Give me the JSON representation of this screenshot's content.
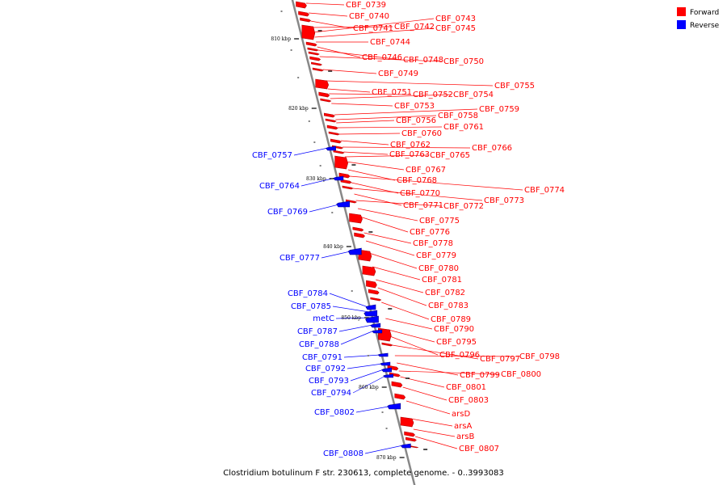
{
  "caption": "Clostridium botulinum F str. 230613, complete genome. - 0..3993083",
  "legend": [
    {
      "label": "Forward",
      "color": "#ff0000"
    },
    {
      "label": "Reverse",
      "color": "#0000ff"
    }
  ],
  "ticks": [
    "810 kbp",
    "820 kbp",
    "830 kbp",
    "840 kbp",
    "850 kbp",
    "860 kbp",
    "870 kbp"
  ],
  "colors": {
    "forward": "#ff0000",
    "reverse": "#0000ff",
    "backbone": "#888888"
  },
  "forward_labels": [
    "CBF_0739",
    "CBF_0740",
    "CBF_0741",
    "CBF_0742",
    "CBF_0743",
    "CBF_0745",
    "CBF_0744",
    "CBF_0746",
    "CBF_0748",
    "CBF_0750",
    "CBF_0749",
    "CBF_0755",
    "CBF_0751",
    "CBF_0752",
    "CBF_0754",
    "CBF_0753",
    "CBF_0759",
    "CBF_0758",
    "CBF_0756",
    "CBF_0761",
    "CBF_0760",
    "CBF_0762",
    "CBF_0766",
    "CBF_0763",
    "CBF_0765",
    "CBF_0767",
    "CBF_0768",
    "CBF_0774",
    "CBF_0770",
    "CBF_0773",
    "CBF_0771",
    "CBF_0772",
    "CBF_0775",
    "CBF_0776",
    "CBF_0778",
    "CBF_0779",
    "CBF_0780",
    "CBF_0781",
    "CBF_0782",
    "CBF_0783",
    "CBF_0789",
    "CBF_0790",
    "CBF_0795",
    "CBF_0796",
    "CBF_0797",
    "CBF_0798",
    "CBF_0799",
    "CBF_0800",
    "CBF_0801",
    "CBF_0803",
    "arsD",
    "arsA",
    "arsB",
    "CBF_0807"
  ],
  "reverse_labels": [
    "CBF_0757",
    "CBF_0764",
    "CBF_0769",
    "CBF_0777",
    "CBF_0784",
    "CBF_0785",
    "metC",
    "CBF_0787",
    "CBF_0788",
    "CBF_0791",
    "CBF_0792",
    "CBF_0793",
    "CBF_0794",
    "CBF_0802",
    "CBF_0808"
  ]
}
